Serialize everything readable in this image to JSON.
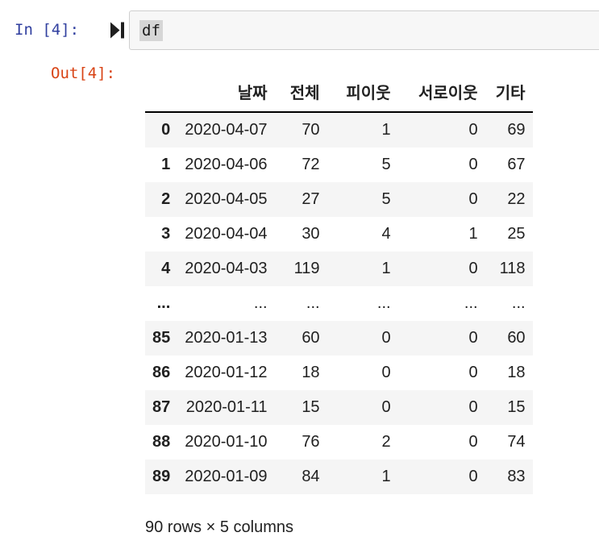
{
  "notebook": {
    "input_prompt": "In [4]:",
    "output_prompt": "Out[4]:",
    "code": "df",
    "icons": {
      "run_icon": "run-to-end-icon"
    },
    "colors": {
      "input_prompt": "#303F9F",
      "output_prompt": "#D84315",
      "code_cell_bg": "#F7F7F7",
      "code_cell_border": "#CFCFCF",
      "code_selection_highlight": "#D6D6D6",
      "row_stripe": "#F5F5F5",
      "header_rule": "#000000",
      "text": "#212121"
    }
  },
  "table": {
    "index_header": "",
    "columns": [
      "날짜",
      "전체",
      "피이웃",
      "서로이웃",
      "기타"
    ],
    "rows": [
      {
        "index": "0",
        "cells": [
          "2020-04-07",
          "70",
          "1",
          "0",
          "69"
        ]
      },
      {
        "index": "1",
        "cells": [
          "2020-04-06",
          "72",
          "5",
          "0",
          "67"
        ]
      },
      {
        "index": "2",
        "cells": [
          "2020-04-05",
          "27",
          "5",
          "0",
          "22"
        ]
      },
      {
        "index": "3",
        "cells": [
          "2020-04-04",
          "30",
          "4",
          "1",
          "25"
        ]
      },
      {
        "index": "4",
        "cells": [
          "2020-04-03",
          "119",
          "1",
          "0",
          "118"
        ]
      },
      {
        "index": "...",
        "cells": [
          "...",
          "...",
          "...",
          "...",
          "..."
        ]
      },
      {
        "index": "85",
        "cells": [
          "2020-01-13",
          "60",
          "0",
          "0",
          "60"
        ]
      },
      {
        "index": "86",
        "cells": [
          "2020-01-12",
          "18",
          "0",
          "0",
          "18"
        ]
      },
      {
        "index": "87",
        "cells": [
          "2020-01-11",
          "15",
          "0",
          "0",
          "15"
        ]
      },
      {
        "index": "88",
        "cells": [
          "2020-01-10",
          "76",
          "2",
          "0",
          "74"
        ]
      },
      {
        "index": "89",
        "cells": [
          "2020-01-09",
          "84",
          "1",
          "0",
          "83"
        ]
      }
    ],
    "summary": "90 rows × 5 columns"
  }
}
